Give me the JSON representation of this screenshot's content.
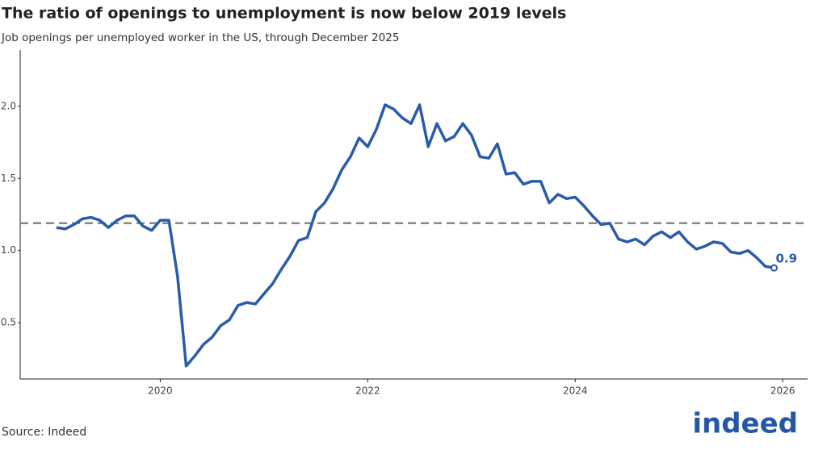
{
  "chart_data": {
    "type": "line",
    "title": "The ratio of openings to unemployment is now below 2019 levels",
    "subtitle": "Job openings per unemployed worker in the US, through December 2025",
    "source": "Source: Indeed",
    "logo": "indeed",
    "x": [
      2019.0,
      2019.083,
      2019.167,
      2019.25,
      2019.333,
      2019.417,
      2019.5,
      2019.583,
      2019.667,
      2019.75,
      2019.833,
      2019.917,
      2020.0,
      2020.083,
      2020.167,
      2020.25,
      2020.333,
      2020.417,
      2020.5,
      2020.583,
      2020.667,
      2020.75,
      2020.833,
      2020.917,
      2021.0,
      2021.083,
      2021.167,
      2021.25,
      2021.333,
      2021.417,
      2021.5,
      2021.583,
      2021.667,
      2021.75,
      2021.833,
      2021.917,
      2022.0,
      2022.083,
      2022.167,
      2022.25,
      2022.333,
      2022.417,
      2022.5,
      2022.583,
      2022.667,
      2022.75,
      2022.833,
      2022.917,
      2023.0,
      2023.083,
      2023.167,
      2023.25,
      2023.333,
      2023.417,
      2023.5,
      2023.583,
      2023.667,
      2023.75,
      2023.833,
      2023.917,
      2024.0,
      2024.083,
      2024.167,
      2024.25,
      2024.333,
      2024.417,
      2024.5,
      2024.583,
      2024.667,
      2024.75,
      2024.833,
      2024.917,
      2025.0,
      2025.083,
      2025.167,
      2025.25,
      2025.333,
      2025.417,
      2025.5,
      2025.583,
      2025.667,
      2025.75,
      2025.833,
      2025.917
    ],
    "series": [
      {
        "color": "#2a5caa",
        "values": [
          1.16,
          1.15,
          1.18,
          1.22,
          1.23,
          1.21,
          1.16,
          1.21,
          1.24,
          1.24,
          1.17,
          1.14,
          1.21,
          1.21,
          0.82,
          0.2,
          0.27,
          0.35,
          0.4,
          0.48,
          0.52,
          0.62,
          0.64,
          0.63,
          0.7,
          0.77,
          0.87,
          0.96,
          1.07,
          1.09,
          1.27,
          1.33,
          1.43,
          1.56,
          1.65,
          1.78,
          1.72,
          1.84,
          2.01,
          1.98,
          1.92,
          1.88,
          2.01,
          1.72,
          1.88,
          1.76,
          1.79,
          1.88,
          1.8,
          1.65,
          1.64,
          1.74,
          1.53,
          1.54,
          1.46,
          1.48,
          1.48,
          1.33,
          1.39,
          1.36,
          1.37,
          1.31,
          1.24,
          1.18,
          1.19,
          1.08,
          1.06,
          1.08,
          1.04,
          1.1,
          1.13,
          1.09,
          1.13,
          1.06,
          1.01,
          1.03,
          1.06,
          1.05,
          0.99,
          0.98,
          1.0,
          0.95,
          0.89,
          0.88
        ],
        "value_labels": [
          null,
          null,
          null,
          null,
          null,
          null,
          null,
          null,
          null,
          null,
          null,
          null,
          null,
          null,
          null,
          null,
          null,
          null,
          null,
          null,
          null,
          null,
          null,
          null,
          null,
          null,
          null,
          null,
          null,
          null,
          null,
          null,
          null,
          null,
          null,
          null,
          null,
          null,
          null,
          null,
          null,
          null,
          null,
          null,
          null,
          null,
          null,
          null,
          null,
          null,
          null,
          null,
          null,
          null,
          null,
          null,
          null,
          null,
          null,
          null,
          null,
          null,
          null,
          null,
          null,
          null,
          null,
          null,
          null,
          null,
          null,
          null,
          null,
          null,
          null,
          null,
          null,
          null,
          null,
          null,
          null,
          null,
          null,
          "0.9"
        ]
      }
    ],
    "reference_line": 1.19,
    "xlim": [
      2018.65,
      2026.24
    ],
    "xticks": [
      2020,
      2022,
      2024,
      2026
    ],
    "ylim": [
      0.11,
      2.39
    ],
    "yticks": [
      0.5,
      {
        "value": 1,
        "label": "1.0"
      },
      1.5,
      {
        "value": 2,
        "label": "2.0"
      }
    ],
    "grid": false
  }
}
